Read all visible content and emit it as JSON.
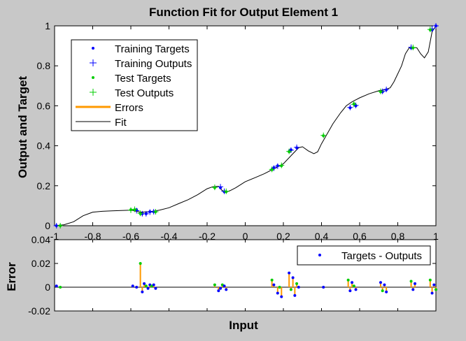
{
  "chart_data": [
    {
      "type": "scatter",
      "title": "Function Fit for Output Element 1",
      "xlabel": "",
      "ylabel": "Output and Target",
      "xlim": [
        -1,
        1
      ],
      "ylim": [
        0,
        1
      ],
      "xticks": [
        "-1",
        "-0.8",
        "-0.6",
        "-0.4",
        "-0.2",
        "0",
        "0.2",
        "0.4",
        "0.6",
        "0.8",
        "1"
      ],
      "yticks": [
        "0",
        "0.2",
        "0.4",
        "0.6",
        "0.8",
        "1"
      ],
      "grid": false,
      "legend_position": "top-left",
      "colors": {
        "training": "#0000ff",
        "test": "#00cc00",
        "errors": "#ff9900",
        "fit": "#000000"
      },
      "series": [
        {
          "name": "Training Targets",
          "marker": "dot",
          "x": [
            -0.99,
            -0.57,
            -0.54,
            -0.52,
            -0.5,
            -0.48,
            -0.13,
            -0.11,
            0.15,
            0.17,
            0.24,
            0.27,
            0.55,
            0.58,
            0.72,
            0.74,
            0.87,
            0.98,
            1.0
          ],
          "y": [
            0.0,
            0.08,
            0.06,
            0.06,
            0.07,
            0.07,
            0.19,
            0.17,
            0.29,
            0.3,
            0.38,
            0.39,
            0.59,
            0.6,
            0.67,
            0.68,
            0.89,
            0.98,
            1.0
          ]
        },
        {
          "name": "Training Outputs",
          "marker": "plus",
          "x": [
            -0.99,
            -0.57,
            -0.54,
            -0.52,
            -0.5,
            -0.48,
            -0.13,
            -0.11,
            0.15,
            0.17,
            0.24,
            0.27,
            0.55,
            0.58,
            0.72,
            0.74,
            0.87,
            0.98,
            1.0
          ],
          "y": [
            0.0,
            0.075,
            0.06,
            0.06,
            0.068,
            0.07,
            0.195,
            0.172,
            0.288,
            0.298,
            0.378,
            0.392,
            0.592,
            0.602,
            0.672,
            0.682,
            0.893,
            0.985,
            1.0
          ]
        },
        {
          "name": "Test Targets",
          "marker": "dot",
          "x": [
            -0.97,
            -0.6,
            -0.58,
            -0.55,
            -0.47,
            -0.16,
            -0.1,
            0.14,
            0.19,
            0.23,
            0.41,
            0.57,
            0.71,
            0.88,
            0.97
          ],
          "y": [
            0.0,
            0.08,
            0.08,
            0.06,
            0.07,
            0.19,
            0.17,
            0.28,
            0.3,
            0.37,
            0.45,
            0.61,
            0.67,
            0.89,
            0.98
          ]
        },
        {
          "name": "Test Outputs",
          "marker": "plus",
          "x": [
            -0.97,
            -0.6,
            -0.58,
            -0.55,
            -0.47,
            -0.16,
            -0.1,
            0.14,
            0.19,
            0.23,
            0.41,
            0.57,
            0.71,
            0.88,
            0.97
          ],
          "y": [
            0.0,
            0.078,
            0.082,
            0.062,
            0.07,
            0.192,
            0.172,
            0.282,
            0.302,
            0.372,
            0.452,
            0.607,
            0.672,
            0.892,
            0.982
          ]
        },
        {
          "name": "Errors",
          "marker": "line"
        },
        {
          "name": "Fit",
          "marker": "line",
          "x": [
            -1.0,
            -0.95,
            -0.9,
            -0.85,
            -0.8,
            -0.75,
            -0.7,
            -0.65,
            -0.6,
            -0.55,
            -0.5,
            -0.45,
            -0.4,
            -0.35,
            -0.3,
            -0.25,
            -0.2,
            -0.17,
            -0.14,
            -0.12,
            -0.1,
            -0.08,
            -0.05,
            0.0,
            0.05,
            0.1,
            0.15,
            0.2,
            0.25,
            0.28,
            0.3,
            0.33,
            0.36,
            0.38,
            0.4,
            0.43,
            0.46,
            0.5,
            0.53,
            0.56,
            0.6,
            0.65,
            0.7,
            0.73,
            0.76,
            0.78,
            0.8,
            0.82,
            0.84,
            0.86,
            0.88,
            0.9,
            0.92,
            0.94,
            0.96,
            0.98,
            1.0
          ],
          "y": [
            0.0,
            0.005,
            0.02,
            0.05,
            0.068,
            0.072,
            0.074,
            0.076,
            0.078,
            0.068,
            0.07,
            0.078,
            0.09,
            0.11,
            0.13,
            0.155,
            0.185,
            0.195,
            0.197,
            0.175,
            0.168,
            0.175,
            0.19,
            0.22,
            0.24,
            0.26,
            0.285,
            0.31,
            0.36,
            0.39,
            0.395,
            0.375,
            0.36,
            0.37,
            0.41,
            0.46,
            0.51,
            0.565,
            0.6,
            0.62,
            0.64,
            0.66,
            0.675,
            0.68,
            0.69,
            0.72,
            0.76,
            0.8,
            0.86,
            0.89,
            0.892,
            0.89,
            0.86,
            0.84,
            0.87,
            0.97,
            1.0
          ]
        }
      ]
    },
    {
      "type": "scatter",
      "title": "",
      "xlabel": "Input",
      "ylabel": "Error",
      "xlim": [
        -1,
        1
      ],
      "ylim": [
        -0.02,
        0.04
      ],
      "yticks": [
        "-0.02",
        "0",
        "0.02",
        "0.04"
      ],
      "legend_position": "top-right",
      "series": [
        {
          "name": "Targets - Outputs",
          "marker": "dot",
          "x": [
            -0.99,
            -0.97,
            -0.59,
            -0.57,
            -0.55,
            -0.54,
            -0.53,
            -0.52,
            -0.51,
            -0.5,
            -0.49,
            -0.48,
            -0.47,
            -0.16,
            -0.14,
            -0.13,
            -0.12,
            -0.11,
            -0.1,
            0.14,
            0.15,
            0.17,
            0.18,
            0.19,
            0.23,
            0.24,
            0.25,
            0.26,
            0.27,
            0.28,
            0.41,
            0.54,
            0.55,
            0.56,
            0.57,
            0.58,
            0.71,
            0.72,
            0.73,
            0.74,
            0.87,
            0.88,
            0.89,
            0.97,
            0.98,
            0.99,
            1.0
          ],
          "y": [
            0.001,
            0.0,
            0.001,
            0.0,
            0.02,
            -0.004,
            0.003,
            0.001,
            -0.001,
            0.002,
            0.001,
            0.002,
            -0.001,
            0.002,
            -0.003,
            -0.001,
            0.002,
            0.001,
            -0.002,
            0.006,
            0.002,
            -0.005,
            0.0,
            -0.008,
            0.012,
            -0.002,
            0.008,
            -0.007,
            0.003,
            0.0,
            0.0,
            0.006,
            -0.003,
            0.004,
            0.001,
            -0.002,
            0.004,
            -0.003,
            0.002,
            -0.004,
            0.005,
            -0.002,
            0.003,
            0.006,
            -0.005,
            0.002,
            -0.002
          ]
        }
      ]
    }
  ]
}
